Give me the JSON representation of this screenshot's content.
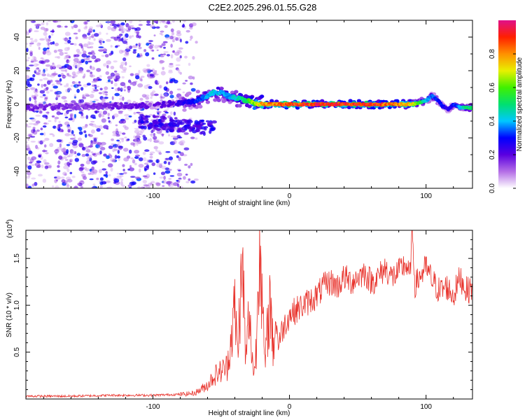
{
  "title": "C2E2.2025.296.01.55.G28",
  "colors": {
    "snr_line": "#e8312a",
    "spectrum_scatter": "#8a2be2",
    "axis": "#000000"
  },
  "chart_data": [
    {
      "type": "heatmap",
      "title": "C2E2.2025.296.01.55.G28",
      "xlabel": "Height of straight line (km)",
      "ylabel": "Frequency (Hz)",
      "xlim": [
        -193,
        134
      ],
      "ylim": [
        -50,
        50
      ],
      "xticks": [
        -100,
        0,
        100
      ],
      "yticks": [
        -40,
        -20,
        0,
        20,
        40
      ],
      "colorbar": {
        "label": "Normalized spectral amplitude",
        "range": [
          0,
          1
        ],
        "ticks": [
          "0.0",
          "0.2",
          "0.4",
          "0.6",
          "0.8"
        ],
        "tick_values": [
          0,
          0.2,
          0.4,
          0.6,
          0.8
        ],
        "colormap": [
          "#ffffff",
          "#b46ee6",
          "#5a00e0",
          "#0000ff",
          "#00c8ff",
          "#00e070",
          "#40f000",
          "#e8f000",
          "#ff9000",
          "#ff2000",
          "#e0108a"
        ]
      },
      "ridge": {
        "height_km": [
          -193,
          -150,
          -110,
          -90,
          -70,
          -60,
          -55,
          -50,
          -45,
          -40,
          -35,
          -30,
          -25,
          -20,
          -10,
          0,
          20,
          40,
          60,
          70,
          80,
          90,
          95,
          100,
          104,
          108,
          112,
          116,
          120,
          125,
          130,
          134
        ],
        "frequency_hz": [
          -2,
          -1,
          -1,
          0,
          2,
          5,
          7,
          7,
          5,
          4,
          3,
          2,
          0,
          0,
          0,
          0,
          0,
          0,
          0,
          0,
          0,
          0,
          1,
          2,
          5,
          3,
          -1,
          -3,
          0,
          -2,
          -2,
          -2
        ],
        "amplitude": [
          0.18,
          0.16,
          0.2,
          0.22,
          0.3,
          0.4,
          0.45,
          0.4,
          0.4,
          0.45,
          0.5,
          0.6,
          0.7,
          0.8,
          0.88,
          0.9,
          0.95,
          0.95,
          0.95,
          0.9,
          0.85,
          0.75,
          0.6,
          0.45,
          0.35,
          0.35,
          0.3,
          0.25,
          0.3,
          0.4,
          0.55,
          0.5
        ]
      },
      "noise_region_km": [
        -193,
        -80
      ]
    },
    {
      "type": "line",
      "xlabel": "Height of straight line (km)",
      "ylabel": "SNR (10 * v/v)",
      "y_scale_label": "(x10",
      "y_scale_exponent": "4",
      "y_scale_suffix": ")",
      "xlim": [
        -193,
        134
      ],
      "ylim": [
        0,
        1.8
      ],
      "xticks": [
        -100,
        0,
        100
      ],
      "yticks": [
        0.5,
        1.0,
        1.5
      ],
      "series": [
        {
          "name": "SNR",
          "x": [
            -193,
            -160,
            -130,
            -100,
            -80,
            -70,
            -65,
            -60,
            -55,
            -50,
            -45,
            -42,
            -40,
            -38,
            -36,
            -34,
            -32,
            -30,
            -28,
            -26,
            -24,
            -22,
            -20,
            -18,
            -16,
            -14,
            -12,
            -10,
            -8,
            -5,
            0,
            5,
            10,
            15,
            20,
            25,
            30,
            35,
            40,
            45,
            50,
            55,
            60,
            65,
            70,
            75,
            80,
            85,
            88,
            90,
            92,
            95,
            100,
            105,
            110,
            115,
            120,
            125,
            130,
            134
          ],
          "values": [
            0.03,
            0.03,
            0.04,
            0.04,
            0.05,
            0.06,
            0.1,
            0.15,
            0.25,
            0.3,
            0.35,
            0.6,
            0.8,
            0.4,
            0.9,
            1.1,
            0.3,
            0.7,
            0.5,
            0.2,
            0.5,
            1.65,
            0.8,
            0.3,
            0.6,
            0.9,
            0.4,
            0.8,
            0.6,
            0.75,
            0.9,
            0.95,
            1.0,
            1.05,
            1.1,
            1.2,
            1.25,
            1.2,
            1.3,
            1.25,
            1.3,
            1.35,
            1.25,
            1.3,
            1.4,
            1.3,
            1.35,
            1.45,
            1.3,
            1.75,
            1.2,
            1.3,
            1.4,
            1.25,
            1.15,
            1.2,
            1.1,
            1.3,
            1.15,
            1.2
          ]
        }
      ]
    }
  ]
}
